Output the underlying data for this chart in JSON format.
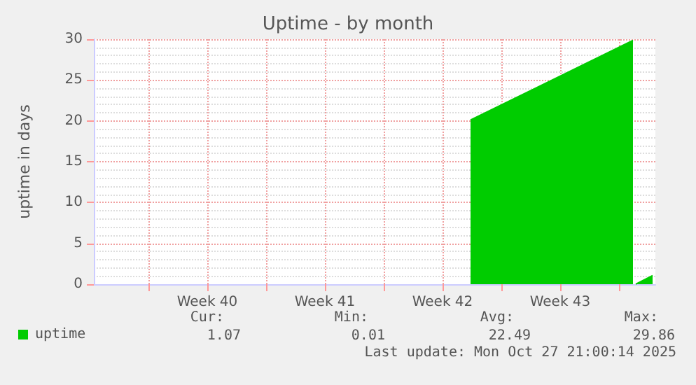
{
  "chart_data": {
    "type": "area",
    "title": "Uptime - by month",
    "ylabel": "uptime in days",
    "x": [
      "2025-10-17T01:00",
      "2025-10-26T17:00",
      "2025-10-26T19:00",
      "2025-10-26T21:00",
      "2025-10-27T21:00"
    ],
    "series": [
      {
        "name": "uptime",
        "color": "#00cc00",
        "values": [
          20.1,
          29.86,
          null,
          0.01,
          1.07
        ]
      }
    ],
    "xlim": [
      "2025-09-24T15:00",
      "2025-10-28T01:00"
    ],
    "xticks": [
      {
        "value": "2025-09-27T21:00",
        "label": null
      },
      {
        "value": "2025-10-01T09:00",
        "label": "Week 40"
      },
      {
        "value": "2025-10-04T21:00",
        "label": null
      },
      {
        "value": "2025-10-08T09:00",
        "label": "Week 41"
      },
      {
        "value": "2025-10-11T21:00",
        "label": null
      },
      {
        "value": "2025-10-15T09:00",
        "label": "Week 42"
      },
      {
        "value": "2025-10-18T21:00",
        "label": null
      },
      {
        "value": "2025-10-22T09:00",
        "label": "Week 43"
      },
      {
        "value": "2025-10-25T21:00",
        "label": null
      }
    ],
    "ylim": [
      0,
      30
    ],
    "yticks": [
      0,
      5,
      10,
      15,
      20,
      25,
      30
    ],
    "grid": true,
    "legend": "bottom left",
    "annotations": [
      "Cur:",
      "Min:",
      "Avg:",
      "Max:",
      "1.07",
      "0.01",
      "22.49",
      "29.86",
      "Last update: Mon Oct 27 21:00:14 2025"
    ]
  }
}
